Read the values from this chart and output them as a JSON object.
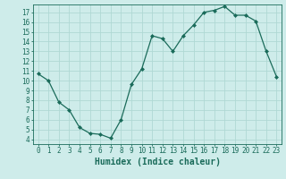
{
  "x": [
    0,
    1,
    2,
    3,
    4,
    5,
    6,
    7,
    8,
    9,
    10,
    11,
    12,
    13,
    14,
    15,
    16,
    17,
    18,
    19,
    20,
    21,
    22,
    23
  ],
  "y": [
    10.7,
    10.0,
    7.8,
    7.0,
    5.2,
    4.6,
    4.5,
    4.1,
    6.0,
    9.6,
    11.2,
    14.6,
    14.3,
    13.0,
    14.6,
    15.7,
    17.0,
    17.2,
    17.6,
    16.7,
    16.7,
    16.1,
    13.0,
    10.4
  ],
  "line_color": "#1a6b5a",
  "marker": "D",
  "marker_size": 2.0,
  "bg_color": "#ceecea",
  "grid_color": "#afd8d4",
  "xlabel": "Humidex (Indice chaleur)",
  "xlim": [
    -0.5,
    23.5
  ],
  "ylim": [
    3.5,
    17.8
  ],
  "yticks": [
    4,
    5,
    6,
    7,
    8,
    9,
    10,
    11,
    12,
    13,
    14,
    15,
    16,
    17
  ],
  "xticks": [
    0,
    1,
    2,
    3,
    4,
    5,
    6,
    7,
    8,
    9,
    10,
    11,
    12,
    13,
    14,
    15,
    16,
    17,
    18,
    19,
    20,
    21,
    22,
    23
  ],
  "tick_fontsize": 5.5,
  "xlabel_fontsize": 7.0,
  "tick_color": "#1a6b5a",
  "axis_color": "#1a6b5a",
  "line_width": 0.9
}
